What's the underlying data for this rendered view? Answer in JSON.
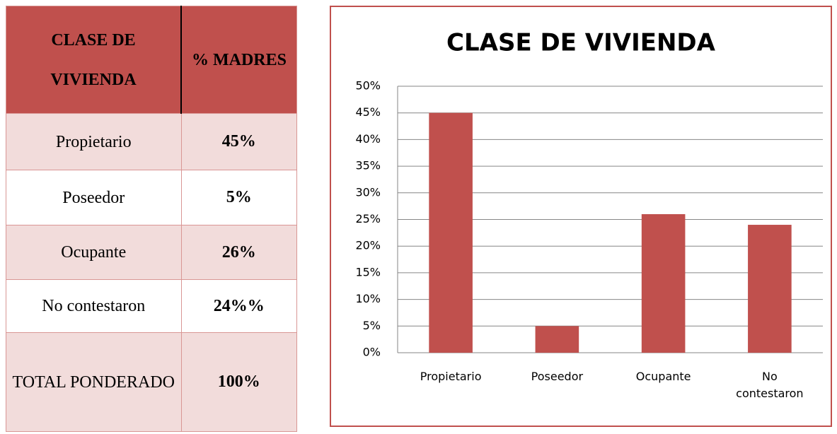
{
  "table": {
    "header": [
      "CLASE DE VIVIENDA",
      "% MADRES"
    ],
    "rows": [
      [
        "Propietario",
        "45%"
      ],
      [
        "Poseedor",
        "5%"
      ],
      [
        "Ocupante",
        "26%"
      ],
      [
        "No contestaron",
        "24%%"
      ],
      [
        "TOTAL PONDERADO",
        "100%"
      ]
    ]
  },
  "chart_data": {
    "type": "bar",
    "title": "CLASE DE VIVIENDA",
    "categories": [
      "Propietario",
      "Poseedor",
      "Ocupante",
      "No contestaron"
    ],
    "values": [
      45,
      5,
      26,
      24
    ],
    "color": "#c0504d",
    "ylim": [
      0,
      50
    ],
    "yticks": [
      {
        "value": 0,
        "label": "0%"
      },
      {
        "value": 5,
        "label": "5%"
      },
      {
        "value": 10,
        "label": "10%"
      },
      {
        "value": 15,
        "label": "15%"
      },
      {
        "value": 20,
        "label": "20%"
      },
      {
        "value": 25,
        "label": "25%"
      },
      {
        "value": 30,
        "label": "30%"
      },
      {
        "value": 35,
        "label": "35%"
      },
      {
        "value": 40,
        "label": "40%"
      },
      {
        "value": 45,
        "label": "45%"
      },
      {
        "value": 50,
        "label": "50%"
      }
    ],
    "grid": true
  }
}
